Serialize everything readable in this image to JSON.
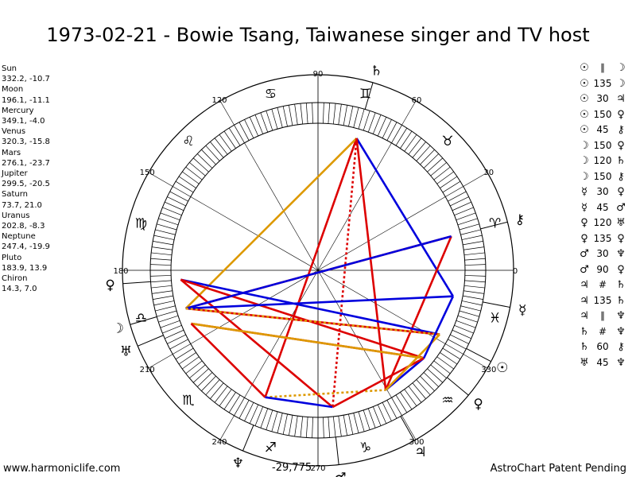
{
  "title": "1973-02-21 - Bowie Tsang, Taiwanese singer and TV host",
  "footer": {
    "site": "www.harmoniclife.com",
    "credit": "AstroChart Patent Pending",
    "value": "-29,775"
  },
  "planets": [
    {
      "name": "Sun",
      "coords": "332.2, -10.7",
      "glyph": "☉",
      "lon": 332.2
    },
    {
      "name": "Moon",
      "coords": "196.1, -11.1",
      "glyph": "☽",
      "lon": 196.1
    },
    {
      "name": "Mercury",
      "coords": "349.1, -4.0",
      "glyph": "☿",
      "lon": 349.1
    },
    {
      "name": "Venus",
      "coords": "320.3, -15.8",
      "glyph": "♀",
      "lon": 320.3
    },
    {
      "name": "Mars",
      "coords": "276.1, -23.7",
      "glyph": "♂",
      "lon": 276.1
    },
    {
      "name": "Jupiter",
      "coords": "299.5, -20.5",
      "glyph": "♃",
      "lon": 299.5
    },
    {
      "name": "Saturn",
      "coords": "73.7, 21.0",
      "glyph": "♄",
      "lon": 73.7
    },
    {
      "name": "Uranus",
      "coords": "202.8, -8.3",
      "glyph": "♅",
      "lon": 202.8
    },
    {
      "name": "Neptune",
      "coords": "247.4, -19.9",
      "glyph": "♆",
      "lon": 247.4
    },
    {
      "name": "Pluto",
      "coords": "183.9, 13.9",
      "glyph": "♀",
      "lon": 183.9
    },
    {
      "name": "Chiron",
      "coords": "14.3, 7.0",
      "glyph": "⚷",
      "lon": 14.3
    }
  ],
  "aspects": [
    {
      "p1": "☉",
      "aspect": "∥",
      "p2": "☽"
    },
    {
      "p1": "☉",
      "aspect": "135",
      "p2": "☽"
    },
    {
      "p1": "☉",
      "aspect": "30",
      "p2": "♃"
    },
    {
      "p1": "☉",
      "aspect": "150",
      "p2": "♀"
    },
    {
      "p1": "☉",
      "aspect": "45",
      "p2": "⚷"
    },
    {
      "p1": "☽",
      "aspect": "150",
      "p2": "♀"
    },
    {
      "p1": "☽",
      "aspect": "120",
      "p2": "♄"
    },
    {
      "p1": "☽",
      "aspect": "150",
      "p2": "⚷"
    },
    {
      "p1": "☿",
      "aspect": "30",
      "p2": "♀"
    },
    {
      "p1": "☿",
      "aspect": "45",
      "p2": "♂"
    },
    {
      "p1": "♀",
      "aspect": "120",
      "p2": "♅"
    },
    {
      "p1": "♀",
      "aspect": "135",
      "p2": "♀"
    },
    {
      "p1": "♂",
      "aspect": "30",
      "p2": "♆"
    },
    {
      "p1": "♂",
      "aspect": "90",
      "p2": "♀"
    },
    {
      "p1": "♃",
      "aspect": "#",
      "p2": "♄"
    },
    {
      "p1": "♃",
      "aspect": "135",
      "p2": "♄"
    },
    {
      "p1": "♃",
      "aspect": "∥",
      "p2": "♆"
    },
    {
      "p1": "♄",
      "aspect": "#",
      "p2": "♆"
    },
    {
      "p1": "♄",
      "aspect": "60",
      "p2": "⚷"
    },
    {
      "p1": "♅",
      "aspect": "45",
      "p2": "♆"
    }
  ],
  "wheel": {
    "degree_labels": [
      "0",
      "30",
      "60",
      "90",
      "120",
      "150",
      "180",
      "210",
      "240",
      "270",
      "300",
      "330"
    ],
    "signs": [
      "♈",
      "♉",
      "♊",
      "♋",
      "♌",
      "♍",
      "♎",
      "♏",
      "♐",
      "♑",
      "♒",
      "♓"
    ],
    "lines": [
      {
        "from": "Saturn",
        "to": "Mercury",
        "color": "#0000dd",
        "style": "solid"
      },
      {
        "from": "Saturn",
        "to": "Neptune",
        "color": "#dd0000",
        "style": "solid"
      },
      {
        "from": "Saturn",
        "to": "Moon",
        "color": "#dd9900",
        "style": "solid"
      },
      {
        "from": "Saturn",
        "to": "Jupiter",
        "color": "#dd0000",
        "style": "solid"
      },
      {
        "from": "Saturn",
        "to": "Mars",
        "color": "#dd0000",
        "style": "dotted"
      },
      {
        "from": "Chiron",
        "to": "Moon",
        "color": "#dd0000",
        "style": "solid"
      },
      {
        "from": "Chiron",
        "to": "Jupiter",
        "color": "#dd0000",
        "style": "solid"
      },
      {
        "from": "Pluto",
        "to": "Sun",
        "color": "#0000dd",
        "style": "solid"
      },
      {
        "from": "Pluto",
        "to": "Venus",
        "color": "#dd0000",
        "style": "solid"
      },
      {
        "from": "Pluto",
        "to": "Mars",
        "color": "#dd0000",
        "style": "solid"
      },
      {
        "from": "Moon",
        "to": "Chiron",
        "color": "#0000dd",
        "style": "solid"
      },
      {
        "from": "Moon",
        "to": "Sun",
        "color": "#dd0000",
        "style": "solid"
      },
      {
        "from": "Moon",
        "to": "Mercury",
        "color": "#0000dd",
        "style": "solid"
      },
      {
        "from": "Moon",
        "to": "Sun",
        "color": "#dd9900",
        "style": "dotted"
      },
      {
        "from": "Uranus",
        "to": "Venus",
        "color": "#dd0000",
        "style": "solid"
      },
      {
        "from": "Uranus",
        "to": "Venus",
        "color": "#dd9900",
        "style": "solid"
      },
      {
        "from": "Uranus",
        "to": "Neptune",
        "color": "#dd0000",
        "style": "solid"
      },
      {
        "from": "Neptune",
        "to": "Jupiter",
        "color": "#dd9900",
        "style": "dotted"
      },
      {
        "from": "Neptune",
        "to": "Mars",
        "color": "#0000dd",
        "style": "solid"
      },
      {
        "from": "Venus",
        "to": "Jupiter",
        "color": "#0000dd",
        "style": "solid"
      },
      {
        "from": "Mars",
        "to": "Venus",
        "color": "#dd0000",
        "style": "solid"
      },
      {
        "from": "Sun",
        "to": "Jupiter",
        "color": "#dd9900",
        "style": "solid"
      },
      {
        "from": "Mercury",
        "to": "Venus",
        "color": "#0000dd",
        "style": "solid"
      }
    ]
  }
}
